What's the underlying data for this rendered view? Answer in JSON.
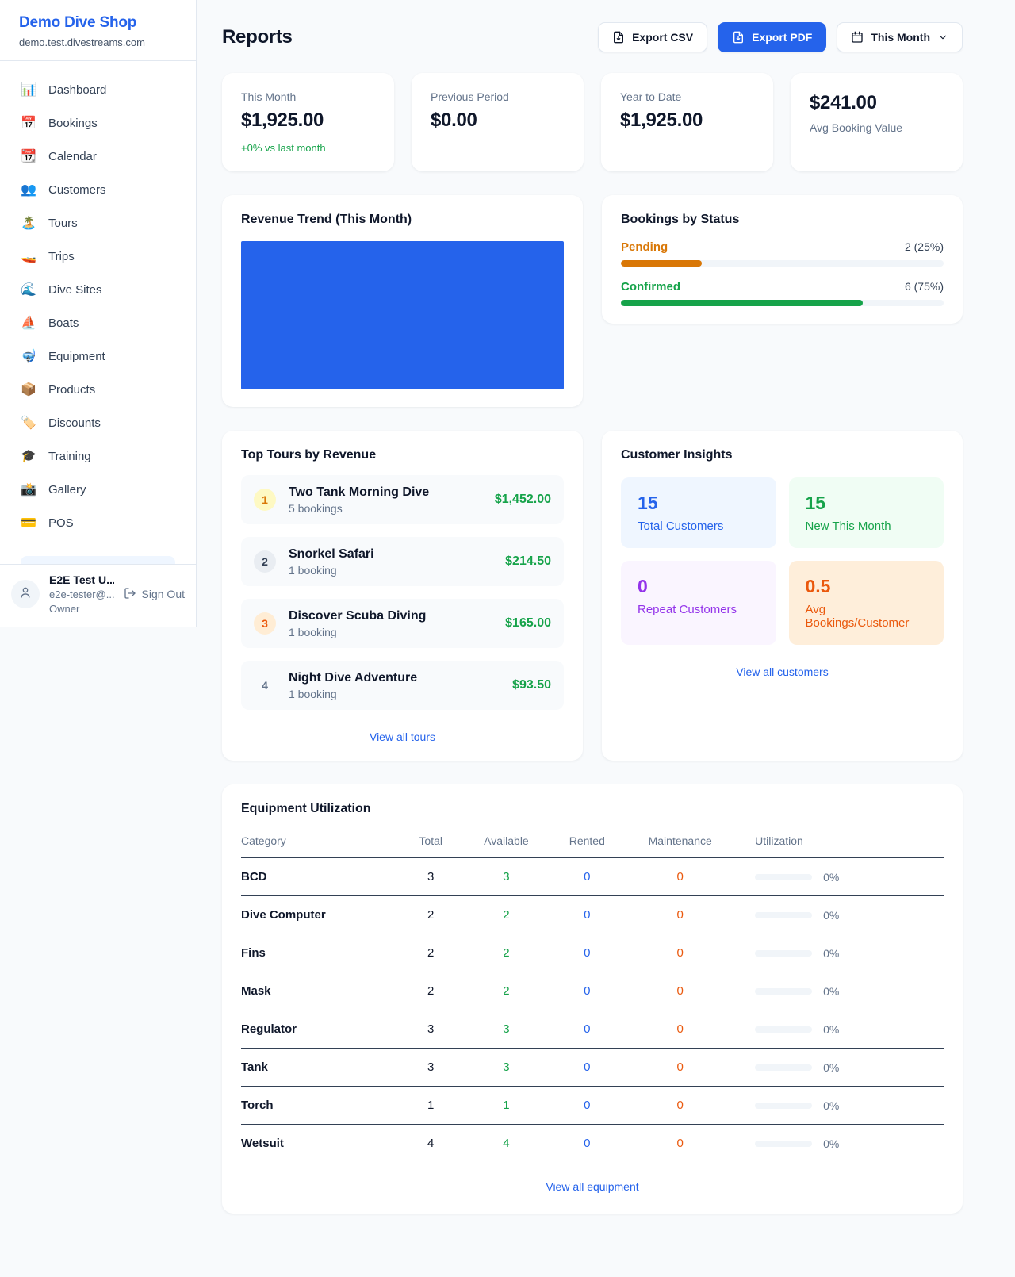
{
  "colors": {
    "accent": "#2563eb",
    "success": "#16a34a",
    "pending": "#d97706",
    "orange": "#ea580c",
    "purple": "#9333ea"
  },
  "sidebar": {
    "brand": {
      "name": "Demo Dive Shop",
      "domain": "demo.test.divestreams.com"
    },
    "items": [
      {
        "icon": "📊",
        "label": "Dashboard"
      },
      {
        "icon": "📅",
        "label": "Bookings"
      },
      {
        "icon": "📆",
        "label": "Calendar"
      },
      {
        "icon": "👥",
        "label": "Customers"
      },
      {
        "icon": "🏝️",
        "label": "Tours"
      },
      {
        "icon": "🚤",
        "label": "Trips"
      },
      {
        "icon": "🌊",
        "label": "Dive Sites"
      },
      {
        "icon": "⛵",
        "label": "Boats"
      },
      {
        "icon": "🤿",
        "label": "Equipment"
      },
      {
        "icon": "📦",
        "label": "Products"
      },
      {
        "icon": "🏷️",
        "label": "Discounts"
      },
      {
        "icon": "🎓",
        "label": "Training"
      },
      {
        "icon": "📸",
        "label": "Gallery"
      },
      {
        "icon": "💳",
        "label": "POS"
      }
    ],
    "user": {
      "name": "E2E Test U...",
      "email": "e2e-tester@...",
      "role": "Owner",
      "signout_label": "Sign Out"
    }
  },
  "header": {
    "title": "Reports",
    "export_csv_label": "Export CSV",
    "export_pdf_label": "Export PDF",
    "period_label": "This Month"
  },
  "stats": [
    {
      "label": "This Month",
      "value": "$1,925.00",
      "delta": "+0% vs last month"
    },
    {
      "label": "Previous Period",
      "value": "$0.00"
    },
    {
      "label": "Year to Date",
      "value": "$1,925.00"
    },
    {
      "label": "Avg Booking Value",
      "value": "$241.00"
    }
  ],
  "revenue_trend": {
    "title": "Revenue Trend (This Month)",
    "bar_color": "#2563eb"
  },
  "bookings_by_status": {
    "title": "Bookings by Status",
    "rows": [
      {
        "label": "Pending",
        "value": "2 (25%)",
        "percent": 25
      },
      {
        "label": "Confirmed",
        "value": "6 (75%)",
        "percent": 75
      }
    ]
  },
  "top_tours": {
    "title": "Top Tours by Revenue",
    "link_label": "View all tours",
    "items": [
      {
        "rank": "1",
        "name": "Two Tank Morning Dive",
        "bookings": "5 bookings",
        "revenue": "$1,452.00"
      },
      {
        "rank": "2",
        "name": "Snorkel Safari",
        "bookings": "1 booking",
        "revenue": "$214.50"
      },
      {
        "rank": "3",
        "name": "Discover Scuba Diving",
        "bookings": "1 booking",
        "revenue": "$165.00"
      },
      {
        "rank": "4",
        "name": "Night Dive Adventure",
        "bookings": "1 booking",
        "revenue": "$93.50"
      }
    ]
  },
  "customer_insights": {
    "title": "Customer Insights",
    "link_label": "View all customers",
    "boxes": [
      {
        "value": "15",
        "label": "Total Customers"
      },
      {
        "value": "15",
        "label": "New This Month"
      },
      {
        "value": "0",
        "label": "Repeat Customers"
      },
      {
        "value": "0.5",
        "label": "Avg Bookings/Customer"
      }
    ]
  },
  "equipment": {
    "title": "Equipment Utilization",
    "link_label": "View all equipment",
    "columns": [
      "Category",
      "Total",
      "Available",
      "Rented",
      "Maintenance",
      "Utilization"
    ],
    "rows": [
      {
        "category": "BCD",
        "total": "3",
        "available": "3",
        "rented": "0",
        "maintenance": "0",
        "utilization": "0%",
        "utilization_percent": 0
      },
      {
        "category": "Dive Computer",
        "total": "2",
        "available": "2",
        "rented": "0",
        "maintenance": "0",
        "utilization": "0%",
        "utilization_percent": 0
      },
      {
        "category": "Fins",
        "total": "2",
        "available": "2",
        "rented": "0",
        "maintenance": "0",
        "utilization": "0%",
        "utilization_percent": 0
      },
      {
        "category": "Mask",
        "total": "2",
        "available": "2",
        "rented": "0",
        "maintenance": "0",
        "utilization": "0%",
        "utilization_percent": 0
      },
      {
        "category": "Regulator",
        "total": "3",
        "available": "3",
        "rented": "0",
        "maintenance": "0",
        "utilization": "0%",
        "utilization_percent": 0
      },
      {
        "category": "Tank",
        "total": "3",
        "available": "3",
        "rented": "0",
        "maintenance": "0",
        "utilization": "0%",
        "utilization_percent": 0
      },
      {
        "category": "Torch",
        "total": "1",
        "available": "1",
        "rented": "0",
        "maintenance": "0",
        "utilization": "0%",
        "utilization_percent": 0
      },
      {
        "category": "Wetsuit",
        "total": "4",
        "available": "4",
        "rented": "0",
        "maintenance": "0",
        "utilization": "0%",
        "utilization_percent": 0
      }
    ]
  }
}
